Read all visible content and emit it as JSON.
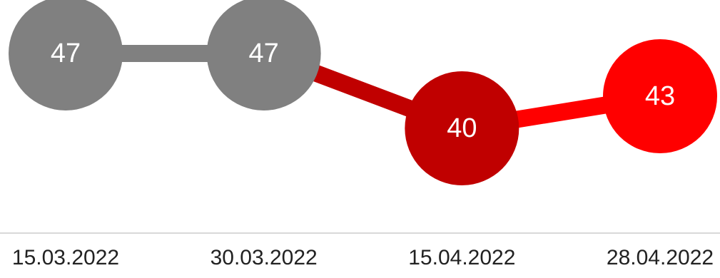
{
  "chart_data": {
    "type": "line",
    "title": "",
    "xlabel": "",
    "ylabel": "",
    "categories": [
      "15.03.2022",
      "30.03.2022",
      "15.04.2022",
      "28.04.2022"
    ],
    "values": [
      47,
      47,
      40,
      43
    ],
    "point_colors": [
      "#808080",
      "#808080",
      "#c00000",
      "#ff0000"
    ],
    "segment_colors": [
      "#808080",
      "#c00000",
      "#ff0000"
    ],
    "ylim": [
      26,
      52
    ],
    "grid": false,
    "legend": "none",
    "baseline_color": "#d9d9d9"
  }
}
